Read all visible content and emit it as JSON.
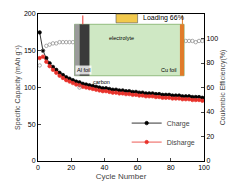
{
  "chart_data": {
    "type": "scatter",
    "title": "Loading 66%",
    "x_label": "Cycle Number",
    "y_label": "Specific Capacity (mAh g⁻¹)",
    "y2_label": "Coulombic Efficiency(%)",
    "xlim": [
      0,
      100
    ],
    "xticks": [
      0,
      20,
      40,
      60,
      80,
      100
    ],
    "ylim": [
      0,
      200
    ],
    "yticks": [
      0,
      50,
      100,
      150,
      200
    ],
    "y2lim": [
      0,
      120
    ],
    "y2ticks": [
      0,
      20,
      40,
      60,
      80,
      100
    ],
    "x": [
      1,
      3,
      5,
      7,
      9,
      11,
      13,
      15,
      17,
      19,
      21,
      23,
      25,
      27,
      29,
      31,
      33,
      35,
      37,
      39,
      41,
      43,
      45,
      47,
      49,
      51,
      53,
      55,
      57,
      59,
      61,
      63,
      65,
      67,
      69,
      71,
      73,
      75,
      77,
      79,
      81,
      83,
      85,
      87,
      89,
      91,
      93,
      95,
      97,
      99
    ],
    "series": [
      {
        "name": "Charge",
        "color": "#000000",
        "marker": "circle",
        "values": [
          175,
          150,
          140,
          133,
          128,
          124,
          120,
          117,
          114,
          112,
          110,
          108,
          107,
          105,
          104,
          103,
          102,
          101,
          100,
          99,
          99,
          98,
          97,
          97,
          96,
          96,
          95,
          95,
          94,
          94,
          93,
          93,
          92,
          92,
          92,
          91,
          91,
          90,
          90,
          90,
          89,
          89,
          89,
          88,
          88,
          88,
          87,
          87,
          87,
          86
        ]
      },
      {
        "name": "Disharge",
        "color": "#e8312a",
        "marker": "circle",
        "values": [
          140,
          142,
          135,
          129,
          124,
          120,
          116,
          113,
          110,
          108,
          106,
          104,
          103,
          101,
          100,
          99,
          98,
          97,
          96,
          95,
          95,
          94,
          93,
          93,
          92,
          92,
          91,
          91,
          90,
          90,
          89,
          89,
          88,
          88,
          88,
          87,
          87,
          86,
          86,
          86,
          85,
          85,
          85,
          84,
          84,
          84,
          83,
          83,
          83,
          82
        ]
      },
      {
        "name": "Coulombic Efficiency",
        "color": "#8a8a8a",
        "marker": "circle-open",
        "axis": "y2",
        "values": [
          78,
          90,
          94,
          95,
          96,
          96,
          97,
          97,
          97,
          97,
          97,
          97,
          60,
          97,
          97,
          98,
          98,
          97,
          98,
          98,
          98,
          97,
          98,
          98,
          98,
          98,
          97,
          98,
          98,
          98,
          98,
          98,
          97,
          98,
          98,
          98,
          98,
          98,
          98,
          97,
          98,
          98,
          98,
          98,
          98,
          98,
          98,
          97,
          98,
          98
        ]
      }
    ],
    "annotations": [
      "Al foil",
      "carbon",
      "electrolyte",
      "Cu foil"
    ],
    "legend": "lower right",
    "grid": false
  }
}
